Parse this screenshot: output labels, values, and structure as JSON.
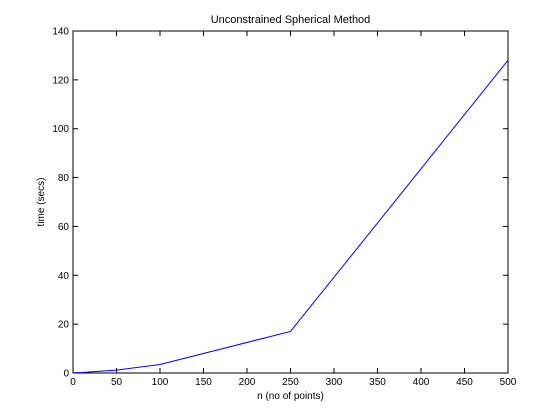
{
  "chart_data": {
    "type": "line",
    "title": "Unconstrained Spherical Method",
    "xlabel": "n (no of points)",
    "ylabel": "time (secs)",
    "xlim": [
      0,
      500
    ],
    "ylim": [
      0,
      140
    ],
    "xticks": [
      0,
      50,
      100,
      150,
      200,
      250,
      300,
      350,
      400,
      450,
      500
    ],
    "yticks": [
      0,
      20,
      40,
      60,
      80,
      100,
      120,
      140
    ],
    "grid": false,
    "series": [
      {
        "color": "#0000ff",
        "x": [
          0,
          10,
          50,
          100,
          250,
          500
        ],
        "y": [
          0.1,
          0.2,
          1.2,
          3.5,
          17,
          128
        ]
      }
    ]
  }
}
